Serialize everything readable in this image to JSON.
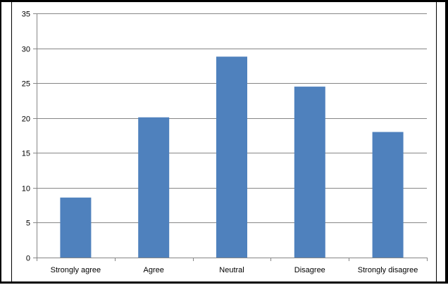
{
  "chart_data": {
    "type": "bar",
    "categories": [
      "Strongly agree",
      "Agree",
      "Neutral",
      "Disagree",
      "Strongly disagree"
    ],
    "values": [
      8.6,
      20.1,
      28.8,
      24.5,
      18.0
    ],
    "title": "",
    "xlabel": "",
    "ylabel": "",
    "ylim": [
      0,
      35
    ],
    "yticks": [
      0,
      5,
      10,
      15,
      20,
      25,
      30,
      35
    ],
    "grid": true,
    "legend": "none",
    "bar_color": "#4F81BD",
    "grid_color": "#868686"
  }
}
